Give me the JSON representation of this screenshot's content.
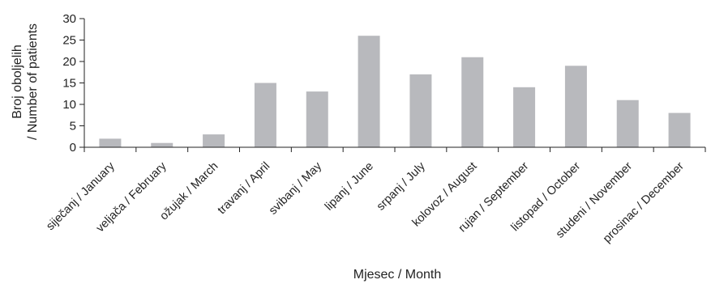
{
  "chart_data": {
    "type": "bar",
    "title": "",
    "xlabel": "Mjesec / Month",
    "ylabel_lines": [
      "Broj oboljelih",
      "/ Number of patients"
    ],
    "ylim": [
      0,
      30
    ],
    "yticks": [
      0,
      5,
      10,
      15,
      20,
      25,
      30
    ],
    "grid": false,
    "bar_color": "#b8b9bd",
    "categories": [
      "siječanj / January",
      "veljača / February",
      "ožujak / March",
      "travanj / April",
      "svibanj / May",
      "lipanj / June",
      "srpanj / July",
      "kolovoz / August",
      "rujan / September",
      "listopad / October",
      "studeni / November",
      "prosinac / December"
    ],
    "values": [
      2,
      1,
      3,
      15,
      13,
      26,
      17,
      21,
      14,
      19,
      11,
      8
    ]
  }
}
